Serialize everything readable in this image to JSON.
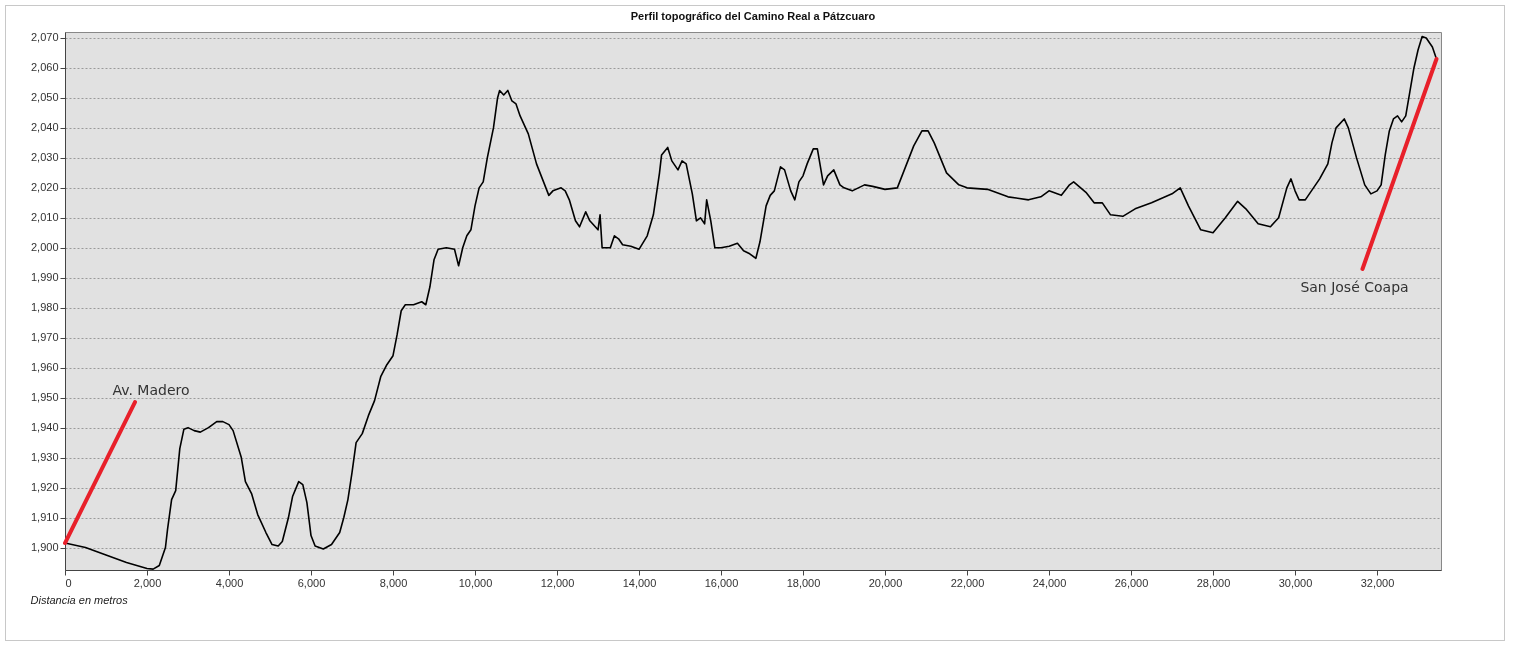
{
  "chart_data": {
    "type": "line",
    "title": "Perfil topográfico del Camino Real a Pátzcuaro",
    "xlabel": "Distancia en metros",
    "x": [
      0,
      500,
      1000,
      1500,
      2000,
      2150,
      2300,
      2450,
      2500,
      2600,
      2700,
      2800,
      2900,
      3000,
      3150,
      3300,
      3500,
      3700,
      3850,
      4000,
      4100,
      4300,
      4400,
      4550,
      4700,
      4900,
      5050,
      5200,
      5300,
      5450,
      5550,
      5700,
      5800,
      5900,
      6000,
      6100,
      6300,
      6500,
      6700,
      6800,
      6900,
      7000,
      7100,
      7250,
      7400,
      7550,
      7700,
      7850,
      8000,
      8100,
      8200,
      8300,
      8500,
      8700,
      8800,
      8900,
      9000,
      9100,
      9300,
      9500,
      9600,
      9700,
      9800,
      9900,
      10000,
      10100,
      10200,
      10300,
      10450,
      10550,
      10600,
      10700,
      10800,
      10900,
      11000,
      11100,
      11200,
      11300,
      11400,
      11500,
      11700,
      11800,
      11900,
      12000,
      12100,
      12200,
      12300,
      12450,
      12550,
      12700,
      12800,
      13000,
      13050,
      13100,
      13300,
      13400,
      13500,
      13600,
      13800,
      14000,
      14200,
      14350,
      14500,
      14550,
      14700,
      14800,
      14950,
      15050,
      15150,
      15300,
      15400,
      15500,
      15600,
      15650,
      15750,
      15850,
      16000,
      16200,
      16400,
      16550,
      16700,
      16850,
      16950,
      17100,
      17200,
      17300,
      17450,
      17550,
      17700,
      17800,
      17900,
      18000,
      18100,
      18250,
      18350,
      18500,
      18600,
      18750,
      18900,
      19000,
      19200,
      19500,
      19700,
      20000,
      20300,
      20500,
      20700,
      20900,
      21050,
      21200,
      21500,
      21800,
      22000,
      22500,
      23000,
      23500,
      23800,
      24000,
      24300,
      24500,
      24600,
      24900,
      25100,
      25300,
      25500,
      25800,
      26100,
      26500,
      27000,
      27200,
      27400,
      27700,
      28000,
      28300,
      28600,
      28800,
      29100,
      29400,
      29600,
      29800,
      29900,
      30000,
      30100,
      30250,
      30400,
      30600,
      30800,
      30900,
      31000,
      31200,
      31300,
      31500,
      31700,
      31850,
      32000,
      32100,
      32200,
      32300,
      32400,
      32500,
      32600,
      32700,
      32800,
      32900,
      33000,
      33100,
      33200,
      33350,
      33450
    ],
    "series": [
      {
        "color": "#000000",
        "values": [
          1901.5,
          1900,
          1897.5,
          1895,
          1893,
          1892.8,
          1894,
          1900,
          1906,
          1916,
          1919,
          1933,
          1939.5,
          1940,
          1939,
          1938.5,
          1940,
          1942,
          1942,
          1941,
          1939,
          1930,
          1922,
          1918,
          1911,
          1905,
          1901,
          1900.5,
          1902,
          1910,
          1917,
          1922,
          1921,
          1915,
          1904,
          1900.5,
          1899.5,
          1901,
          1905,
          1910,
          1916,
          1925,
          1935,
          1938,
          1944,
          1949,
          1957,
          1961,
          1964,
          1971,
          1979,
          1981,
          1981,
          1982,
          1981,
          1987,
          1996,
          1999.5,
          2000,
          1999.5,
          1994,
          2000,
          2004,
          2006,
          2014,
          2020,
          2022,
          2030,
          2040,
          2050,
          2052.5,
          2051,
          2052.5,
          2049,
          2048,
          2044,
          2041,
          2038,
          2033,
          2028,
          2021,
          2017.5,
          2019,
          2019.5,
          2020,
          2019,
          2016,
          2009,
          2007,
          2012,
          2009,
          2006,
          2011,
          2000,
          2000,
          2004,
          2003,
          2001,
          2000.5,
          1999.5,
          2004,
          2011,
          2025,
          2031,
          2033.5,
          2029,
          2026,
          2029,
          2028,
          2018,
          2009,
          2010,
          2008,
          2016,
          2009,
          2000,
          2000,
          2000.5,
          2001.5,
          1999,
          1998,
          1996.5,
          2002,
          2014,
          2017.5,
          2019,
          2027,
          2026,
          2019,
          2016,
          2022,
          2024,
          2028,
          2033,
          2033,
          2021,
          2024,
          2026,
          2021,
          2020,
          2019,
          2021,
          2020.5,
          2019.5,
          2020,
          2027,
          2034,
          2039,
          2039,
          2035,
          2025,
          2021,
          2020,
          2019.5,
          2017,
          2016,
          2017,
          2019,
          2017.5,
          2021,
          2022,
          2018.5,
          2015,
          2015,
          2011,
          2010.5,
          2013,
          2015,
          2018,
          2020,
          2014,
          2006,
          2005,
          2010,
          2015.5,
          2013,
          2008,
          2007,
          2010,
          2020,
          2023,
          2019,
          2016,
          2016,
          2019,
          2023,
          2028,
          2035,
          2040,
          2043,
          2040,
          2030,
          2021,
          2018,
          2019,
          2021,
          2031,
          2039,
          2043,
          2044,
          2042,
          2044,
          2052,
          2060,
          2066,
          2070.5,
          2070,
          2067,
          2063
        ]
      }
    ],
    "xlim": [
      0,
      33560
    ],
    "ylim": [
      1892.5,
      2072
    ],
    "xticks": [
      {
        "value": 0,
        "label": "0"
      },
      {
        "value": 2000,
        "label": "2,000"
      },
      {
        "value": 4000,
        "label": "4,000"
      },
      {
        "value": 6000,
        "label": "6,000"
      },
      {
        "value": 8000,
        "label": "8,000"
      },
      {
        "value": 10000,
        "label": "10,000"
      },
      {
        "value": 12000,
        "label": "12,000"
      },
      {
        "value": 14000,
        "label": "14,000"
      },
      {
        "value": 16000,
        "label": "16,000"
      },
      {
        "value": 18000,
        "label": "18,000"
      },
      {
        "value": 20000,
        "label": "20,000"
      },
      {
        "value": 22000,
        "label": "22,000"
      },
      {
        "value": 24000,
        "label": "24,000"
      },
      {
        "value": 26000,
        "label": "26,000"
      },
      {
        "value": 28000,
        "label": "28,000"
      },
      {
        "value": 30000,
        "label": "30,000"
      },
      {
        "value": 32000,
        "label": "32,000"
      }
    ],
    "yticks": [
      {
        "value": 1900,
        "label": "1,900"
      },
      {
        "value": 1910,
        "label": "1,910"
      },
      {
        "value": 1920,
        "label": "1,920"
      },
      {
        "value": 1930,
        "label": "1,930"
      },
      {
        "value": 1940,
        "label": "1,940"
      },
      {
        "value": 1950,
        "label": "1,950"
      },
      {
        "value": 1960,
        "label": "1,960"
      },
      {
        "value": 1970,
        "label": "1,970"
      },
      {
        "value": 1980,
        "label": "1,980"
      },
      {
        "value": 1990,
        "label": "1,990"
      },
      {
        "value": 2000,
        "label": "2,000"
      },
      {
        "value": 2010,
        "label": "2,010"
      },
      {
        "value": 2020,
        "label": "2,020"
      },
      {
        "value": 2030,
        "label": "2,030"
      },
      {
        "value": 2040,
        "label": "2,040"
      },
      {
        "value": 2050,
        "label": "2,050"
      },
      {
        "value": 2060,
        "label": "2,060"
      },
      {
        "value": 2070,
        "label": "2,070"
      }
    ],
    "grid": "y",
    "annotations": [
      {
        "text": "Av. Madero",
        "x": 0,
        "y": 1901.5
      },
      {
        "text": "San José Coapa",
        "x": 33450,
        "y": 2063
      }
    ]
  }
}
